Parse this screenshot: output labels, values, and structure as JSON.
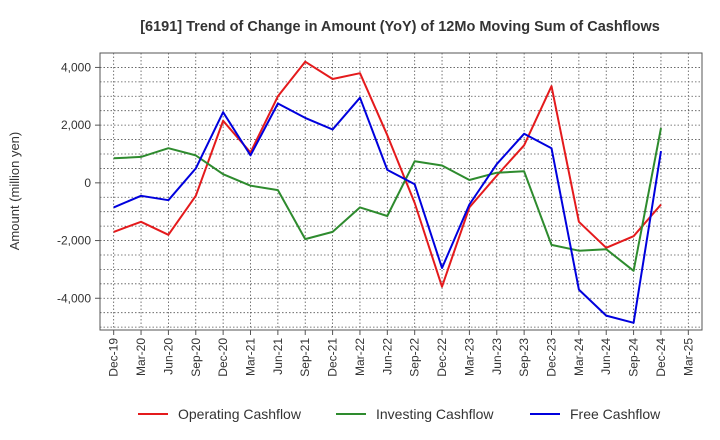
{
  "chart_data": {
    "type": "line",
    "title": "[6191]  Trend of Change in Amount (YoY) of 12Mo Moving Sum of Cashflows",
    "xlabel": "",
    "ylabel": "Amount (million yen)",
    "ylim": [
      -5100,
      4500
    ],
    "yticks": [
      4000,
      2000,
      0,
      -2000,
      -4000
    ],
    "ytick_labels": [
      "4,000",
      "2,000",
      "0",
      "-2,000",
      "-4,000"
    ],
    "categories": [
      "Dec-19",
      "Mar-20",
      "Jun-20",
      "Sep-20",
      "Dec-20",
      "Mar-21",
      "Jun-21",
      "Sep-21",
      "Dec-21",
      "Mar-22",
      "Jun-22",
      "Sep-22",
      "Dec-22",
      "Mar-23",
      "Jun-23",
      "Sep-23",
      "Dec-23",
      "Mar-24",
      "Jun-24",
      "Sep-24",
      "Dec-24",
      "Mar-25"
    ],
    "grid": true,
    "legend_position": "bottom",
    "series": [
      {
        "name": "Operating Cashflow",
        "color": "#e41a1c",
        "values": [
          -1700,
          -1350,
          -1800,
          -450,
          2150,
          1050,
          3000,
          4200,
          3600,
          3800,
          1650,
          -700,
          -3600,
          -850,
          250,
          1300,
          3350,
          -1350,
          -2250,
          -1850,
          -750,
          null
        ]
      },
      {
        "name": "Investing Cashflow",
        "color": "#2e8b2e",
        "values": [
          850,
          900,
          1200,
          950,
          300,
          -100,
          -250,
          -1950,
          -1700,
          -850,
          -1150,
          750,
          600,
          100,
          350,
          400,
          -2150,
          -2350,
          -2300,
          -3050,
          1900,
          null
        ]
      },
      {
        "name": "Free Cashflow",
        "color": "#0000dd",
        "values": [
          -850,
          -450,
          -600,
          500,
          2450,
          950,
          2750,
          2250,
          1850,
          2950,
          450,
          -50,
          -2950,
          -750,
          650,
          1700,
          1200,
          -3700,
          -4600,
          -4850,
          1100,
          null
        ]
      }
    ]
  }
}
